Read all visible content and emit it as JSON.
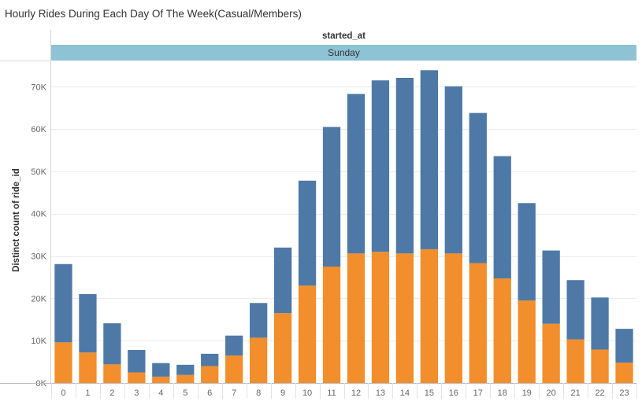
{
  "title": "Hourly Rides During Each Day Of The Week(Casual/Members)",
  "column_header": "started_at",
  "panel_label": "Sunday",
  "colors": {
    "members": "#4e79a7",
    "casual": "#f28e2b",
    "header_band": "#8ec3d6"
  },
  "chart_data": {
    "type": "bar",
    "stacked": true,
    "title": "Hourly Rides During Each Day Of The Week(Casual/Members)",
    "xlabel": "",
    "ylabel": "Distinct count of ride_id",
    "ylim": [
      0,
      75000
    ],
    "y_ticks": [
      0,
      10000,
      20000,
      30000,
      40000,
      50000,
      60000,
      70000
    ],
    "y_tick_labels": [
      "0K",
      "10K",
      "20K",
      "30K",
      "40K",
      "50K",
      "60K",
      "70K"
    ],
    "grid": true,
    "categories": [
      "0",
      "1",
      "2",
      "3",
      "4",
      "5",
      "6",
      "7",
      "8",
      "9",
      "10",
      "11",
      "12",
      "13",
      "14",
      "15",
      "16",
      "17",
      "18",
      "19",
      "20",
      "21",
      "22",
      "23"
    ],
    "series": [
      {
        "color": "#f28e2b",
        "values": [
          9600,
          7200,
          4400,
          2500,
          1500,
          1900,
          4000,
          6500,
          10700,
          16500,
          23000,
          27500,
          30600,
          31000,
          30600,
          31600,
          30600,
          28300,
          24700,
          19500,
          14000,
          10300,
          7900,
          4800
        ]
      },
      {
        "color": "#4e79a7",
        "values": [
          18500,
          13800,
          9700,
          5300,
          3200,
          2400,
          2900,
          4700,
          8200,
          15500,
          24800,
          33000,
          37700,
          40500,
          41500,
          42300,
          39500,
          35500,
          28900,
          23000,
          17300,
          14000,
          12300,
          8000
        ]
      }
    ]
  }
}
